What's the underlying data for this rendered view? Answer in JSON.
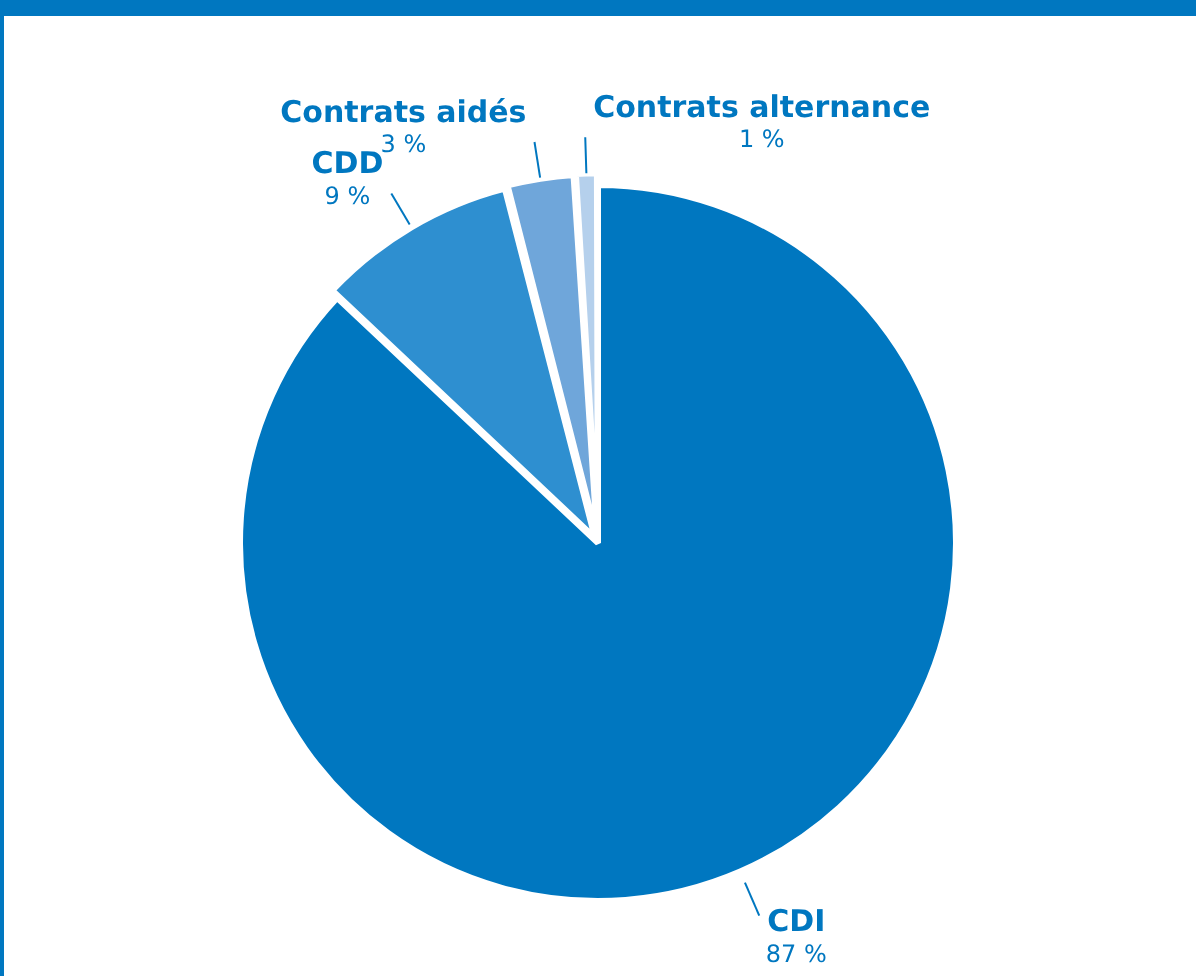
{
  "chart_data": {
    "type": "pie",
    "categories": [
      "CDI",
      "CDD",
      "Contrats aidés",
      "Contrats alternance"
    ],
    "values": [
      87,
      9,
      3,
      1
    ],
    "colors": [
      "#0077c0",
      "#2e8fd0",
      "#6fa6da",
      "#b5d0ec"
    ],
    "value_labels": [
      "87 %",
      "9 %",
      "3 %",
      "1 %"
    ],
    "legend": false
  }
}
